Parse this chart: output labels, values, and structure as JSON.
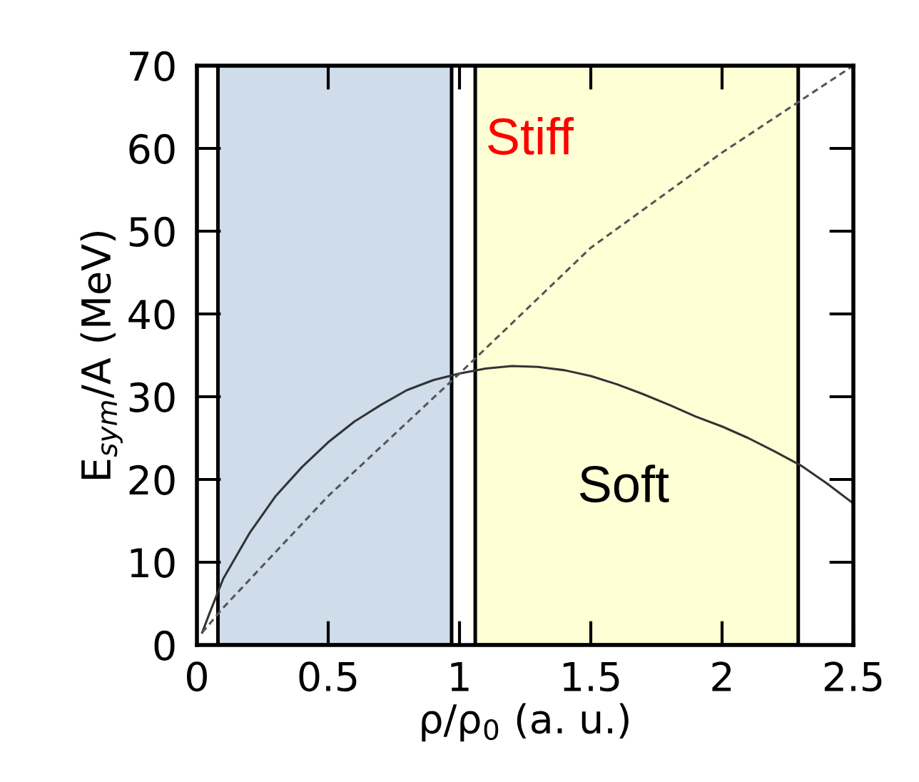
{
  "chart_data": {
    "type": "line",
    "xlabel": "ρ/ρ$_{0}$ (a. u.)",
    "ylabel": "E$_{sym}$/A (MeV)",
    "xlim": [
      0,
      2.5
    ],
    "ylim": [
      0,
      70
    ],
    "xticks": [
      0,
      0.5,
      1,
      1.5,
      2,
      2.5
    ],
    "yticks": [
      0,
      10,
      20,
      30,
      40,
      50,
      60,
      70
    ],
    "grid": false,
    "legend": false,
    "series": [
      {
        "color": "#333333",
        "line_style": "solid",
        "x": [
          0.02,
          0.05,
          0.1,
          0.2,
          0.3,
          0.4,
          0.5,
          0.6,
          0.7,
          0.8,
          0.9,
          1.0,
          1.1,
          1.2,
          1.3,
          1.4,
          1.5,
          1.6,
          1.7,
          1.8,
          1.9,
          2.0,
          2.1,
          2.2,
          2.3,
          2.4,
          2.5
        ],
        "values": [
          1.5,
          4,
          8,
          13.5,
          18,
          21.5,
          24.5,
          27,
          29,
          30.8,
          32,
          32.8,
          33.4,
          33.7,
          33.6,
          33.2,
          32.5,
          31.5,
          30.3,
          29,
          27.6,
          26.4,
          25,
          23.4,
          21.7,
          19.5,
          17.1
        ]
      },
      {
        "color": "#555555",
        "line_style": "dashed",
        "x": [
          0.02,
          0.1,
          0.5,
          1.0,
          1.5,
          2.0,
          2.5
        ],
        "values": [
          1.5,
          4.5,
          18,
          32.8,
          48,
          59.5,
          70
        ]
      }
    ],
    "bands": [
      {
        "axis": "x",
        "from": 0.08,
        "to": 0.97,
        "color": "#cfdcea"
      },
      {
        "axis": "x",
        "from": 1.06,
        "to": 2.29,
        "color": "#ffffd6"
      }
    ],
    "annotations": [
      "Stiff",
      "Soft"
    ]
  }
}
